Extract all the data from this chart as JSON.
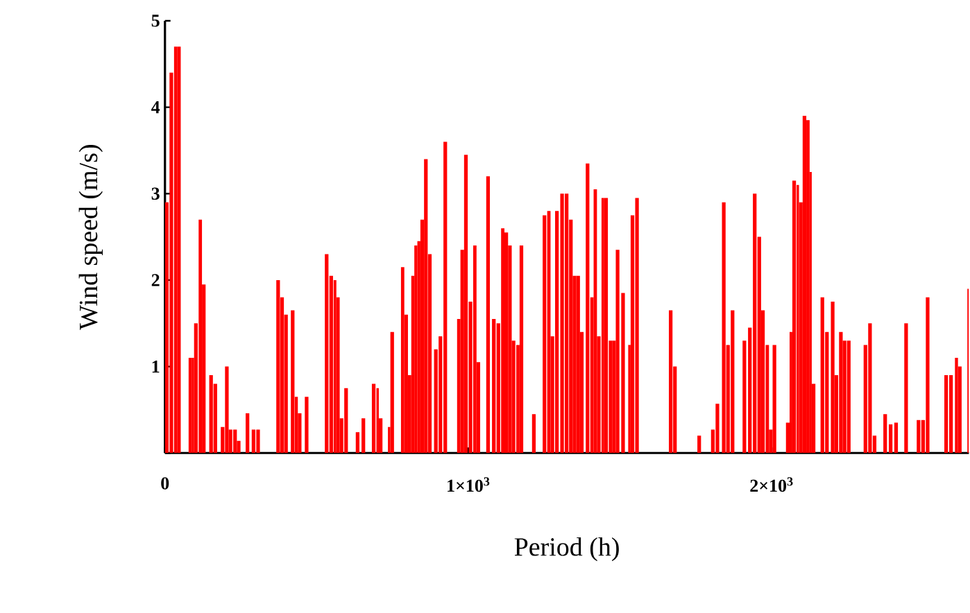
{
  "chart_data": {
    "type": "histogram",
    "xlabel": "Period (h)",
    "ylabel": "Wind speed (m/s)",
    "xlim": [
      0,
      2650
    ],
    "ylim": [
      0,
      5
    ],
    "xticks": [
      0,
      {
        "value": 1000,
        "label": "1×10$^{3}$"
      },
      {
        "value": 2000,
        "label": "2×10$^{3}$"
      }
    ],
    "yticks": [
      {
        "value": 0,
        "label": null
      },
      1,
      2,
      3,
      4,
      5
    ],
    "color": "#ff0000",
    "bins": [
      0,
      12,
      15,
      27,
      30,
      40,
      52,
      78,
      88,
      96,
      108,
      111,
      122,
      134,
      146,
      158,
      160,
      172,
      184,
      196,
      198,
      210,
      222,
      225,
      237,
      249,
      266,
      278,
      286,
      298,
      301,
      313,
      367,
      379,
      380,
      392,
      393,
      405,
      415,
      427,
      428,
      438,
      450,
      461,
      473,
      527,
      539,
      542,
      554,
      556,
      565,
      576,
      588,
      591,
      603,
      629,
      641,
      648,
      660,
      682,
      694,
      697,
      705,
      717,
      735,
      743,
      755,
      778,
      789,
      801,
      812,
      822,
      832,
      842,
      854,
      866,
      867,
      879,
      887,
      899,
      902,
      914,
      918,
      930,
      963,
      974,
      986,
      998,
      1001,
      1013,
      1016,
      1027,
      1039,
      1059,
      1071,
      1078,
      1090,
      1093,
      1105,
      1108,
      1119,
      1131,
      1143,
      1155,
      1158,
      1169,
      1181,
      1210,
      1222,
      1245,
      1257,
      1260,
      1271,
      1283,
      1286,
      1298,
      1303,
      1315,
      1318,
      1330,
      1332,
      1344,
      1356,
      1368,
      1380,
      1387,
      1399,
      1402,
      1413,
      1424,
      1436,
      1439,
      1448,
      1460,
      1463,
      1474,
      1486,
      1498,
      1504,
      1516,
      1527,
      1535,
      1547,
      1550,
      1562,
      1661,
      1673,
      1675,
      1687,
      1755,
      1767,
      1800,
      1812,
      1815,
      1827,
      1836,
      1848,
      1850,
      1862,
      1865,
      1877,
      1904,
      1916,
      1922,
      1934,
      1938,
      1950,
      1953,
      1965,
      1977,
      1980,
      1991,
      2003,
      2015,
      2047,
      2059,
      2068,
      2080,
      2082,
      2090,
      2102,
      2114,
      2125,
      2132,
      2144,
      2161,
      2173,
      2176,
      2188,
      2195,
      2207,
      2219,
      2222,
      2234,
      2246,
      2248,
      2260,
      2303,
      2315,
      2318,
      2330,
      2333,
      2345,
      2368,
      2380,
      2386,
      2398,
      2404,
      2416,
      2437,
      2449,
      2478,
      2490,
      2493,
      2505,
      2508,
      2520,
      2569,
      2581,
      2585,
      2597,
      2604,
      2614,
      2626,
      2645,
      2650
    ],
    "values": [
      2.9,
      0,
      4.4,
      0,
      4.7,
      4.7,
      0,
      1.1,
      1.1,
      1.5,
      0,
      2.7,
      1.95,
      0,
      0.9,
      0,
      0.8,
      0,
      0.3,
      0,
      1.0,
      0.27,
      0,
      0.27,
      0.14,
      0,
      0.46,
      0,
      0.27,
      0,
      0.27,
      0,
      2.0,
      0,
      1.8,
      0,
      1.6,
      0,
      1.65,
      0,
      0.65,
      0.46,
      0,
      0.65,
      0,
      2.3,
      0,
      2.05,
      0,
      2.0,
      1.8,
      0.4,
      0,
      0.75,
      0,
      0.24,
      0,
      0.4,
      0,
      0.8,
      0,
      0.75,
      0.4,
      0,
      0.3,
      1.4,
      0,
      2.15,
      1.6,
      0.9,
      2.05,
      2.4,
      2.45,
      2.7,
      3.4,
      0,
      2.3,
      0,
      1.2,
      0,
      1.35,
      0,
      3.6,
      0,
      1.55,
      2.35,
      3.45,
      0,
      1.75,
      0,
      2.4,
      1.05,
      0,
      3.2,
      0,
      1.55,
      0,
      1.5,
      0,
      2.6,
      2.55,
      2.4,
      1.3,
      0,
      1.25,
      2.4,
      0,
      0.45,
      0,
      2.75,
      0,
      2.8,
      1.35,
      0,
      2.8,
      0,
      3.0,
      0,
      3.0,
      0,
      2.7,
      2.05,
      2.05,
      1.4,
      0,
      3.35,
      0,
      1.8,
      3.05,
      1.35,
      0,
      2.95,
      2.95,
      0,
      1.3,
      1.3,
      2.35,
      0,
      1.85,
      0,
      1.25,
      2.75,
      0,
      2.95,
      0,
      1.65,
      0,
      1.0,
      0,
      0.2,
      0,
      0.27,
      0,
      0.57,
      0,
      2.9,
      0,
      1.25,
      0,
      1.65,
      0,
      1.3,
      0,
      1.45,
      0,
      3.0,
      0,
      2.5,
      1.65,
      0,
      1.25,
      0.27,
      1.25,
      0,
      0.35,
      1.4,
      3.15,
      0,
      3.1,
      2.9,
      3.9,
      3.85,
      3.25,
      0.8,
      0,
      1.8,
      0,
      1.4,
      0,
      1.75,
      0.9,
      0,
      1.4,
      1.3,
      0,
      1.3,
      0,
      1.25,
      0,
      1.5,
      0,
      0.2,
      0,
      0.45,
      0,
      0.33,
      0,
      0.35,
      0,
      1.5,
      0,
      0.38,
      0,
      0.38,
      0,
      1.8,
      0,
      0.9,
      0,
      0.9,
      0,
      1.1,
      1.0,
      0,
      1.9
    ]
  }
}
